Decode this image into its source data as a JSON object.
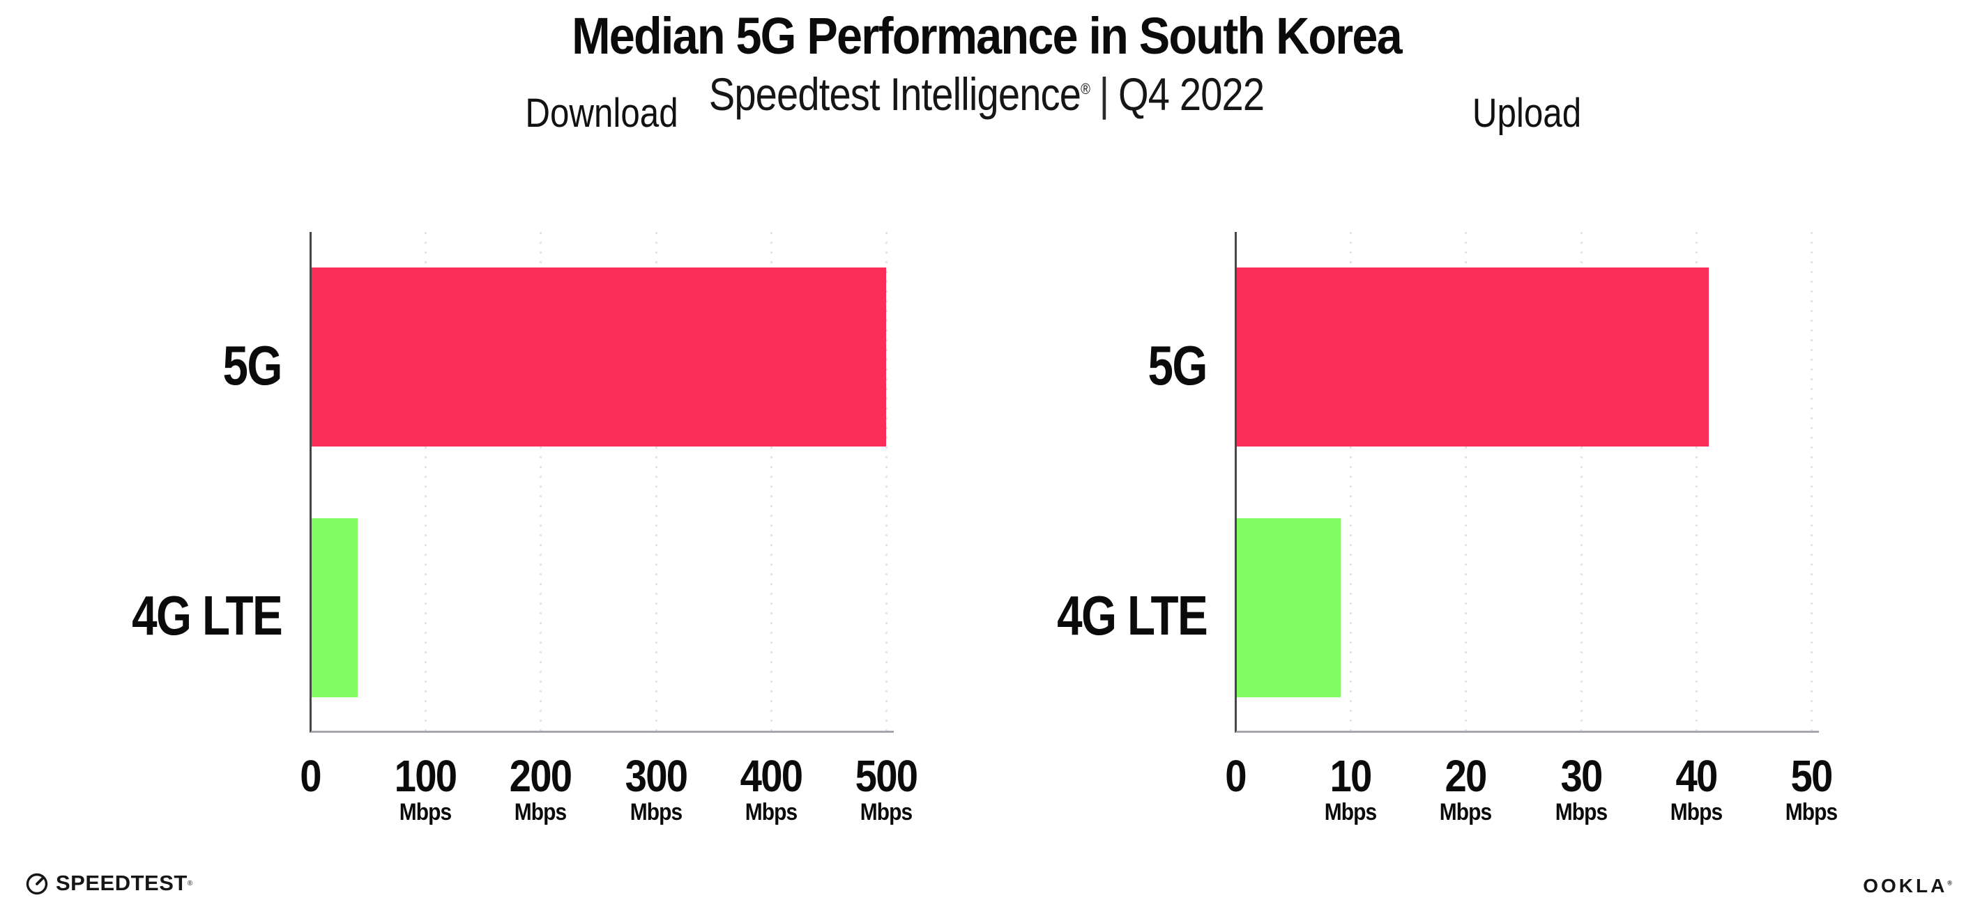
{
  "header": {
    "title": "Median 5G Performance in South Korea",
    "subtitle_brand": "Speedtest Intelligence",
    "subtitle_reg": "®",
    "subtitle_divider": "|",
    "subtitle_period": "Q4 2022"
  },
  "footer": {
    "speedtest_label": "SPEEDTEST",
    "speedtest_reg": "®",
    "speedtest_icon": "speedtest-gauge-icon",
    "ookla_label": "OOKLA",
    "ookla_reg": "®"
  },
  "colors": {
    "bar_5g": "#FC2E58",
    "bar_4g_lte": "#81FC62",
    "y_axis_line": "#47474b",
    "x_axis_line": "#a5a5ab",
    "gridline": "#e3e3ed",
    "text": "#0b0b0c",
    "background": "#ffffff"
  },
  "chart_data": [
    {
      "type": "bar",
      "orientation": "horizontal",
      "title": "Download",
      "categories": [
        "5G",
        "4G LTE"
      ],
      "values": [
        499,
        40
      ],
      "unit": "Mbps",
      "xlim": [
        0,
        500
      ],
      "ticks": [
        0,
        100,
        200,
        300,
        400,
        500
      ],
      "tick_unit_label": "Mbps",
      "grid": "dotted-vertical",
      "legend": "none",
      "bar_colors": [
        "#FC2E58",
        "#81FC62"
      ]
    },
    {
      "type": "bar",
      "orientation": "horizontal",
      "title": "Upload",
      "categories": [
        "5G",
        "4G LTE"
      ],
      "values": [
        41,
        9
      ],
      "unit": "Mbps",
      "xlim": [
        0,
        50
      ],
      "ticks": [
        0,
        10,
        20,
        30,
        40,
        50
      ],
      "tick_unit_label": "Mbps",
      "grid": "dotted-vertical",
      "legend": "none",
      "bar_colors": [
        "#FC2E58",
        "#81FC62"
      ]
    }
  ]
}
